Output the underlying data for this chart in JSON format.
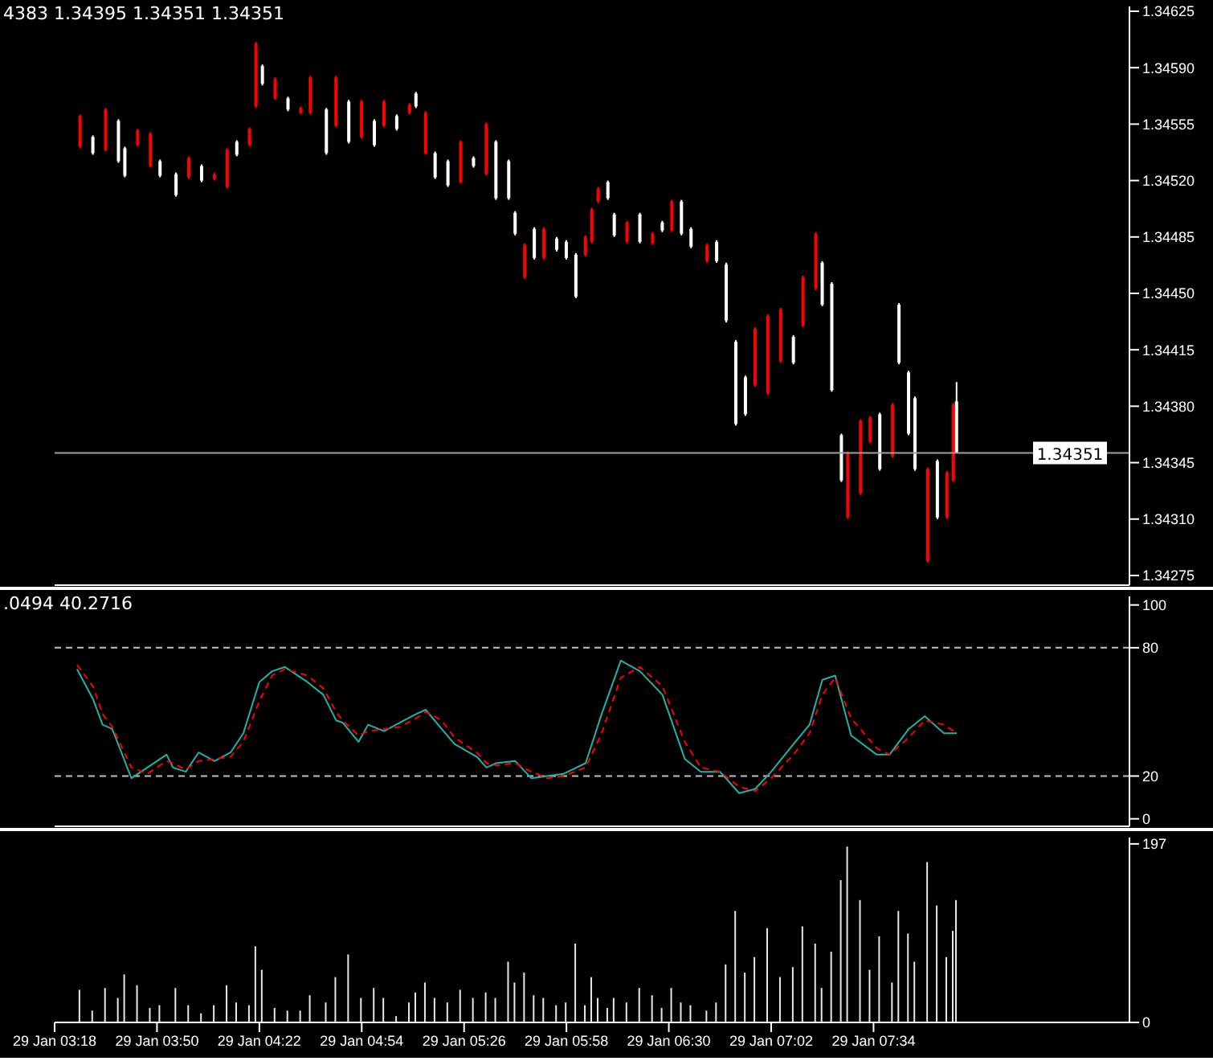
{
  "chart_data": [
    {
      "type": "candlestick",
      "annotations": [
        "4383 1.34395 1.34351 1.34351"
      ],
      "x": [
        "--01-29T03:26",
        "--01-29T03:30",
        "--01-29T03:34",
        "--01-29T03:38",
        "--01-29T03:40",
        "--01-29T03:44",
        "--01-29T03:48",
        "--01-29T03:51",
        "--01-29T03:56",
        "--01-29T04:00",
        "--01-29T04:04",
        "--01-29T04:08",
        "--01-29T04:12",
        "--01-29T04:15",
        "--01-29T04:19",
        "--01-29T04:21",
        "--01-29T04:23",
        "--01-29T04:27",
        "--01-29T04:31",
        "--01-29T04:35",
        "--01-29T04:38",
        "--01-29T04:43",
        "--01-29T04:46",
        "--01-29T04:50",
        "--01-29T04:54",
        "--01-29T04:58",
        "--01-29T05:01",
        "--01-29T05:05",
        "--01-29T05:09",
        "--01-29T05:11",
        "--01-29T05:14",
        "--01-29T05:17",
        "--01-29T05:21",
        "--01-29T05:25",
        "--01-29T05:29",
        "--01-29T05:33",
        "--01-29T05:36",
        "--01-29T05:40",
        "--01-29T05:42",
        "--01-29T05:45",
        "--01-29T05:48",
        "--01-29T05:51",
        "--01-29T05:55",
        "--01-29T05:58",
        "--01-29T06:01",
        "--01-29T06:04",
        "--01-29T06:06",
        "--01-29T06:08",
        "--01-29T06:11",
        "--01-29T06:13",
        "--01-29T06:17",
        "--01-29T06:21",
        "--01-29T06:25",
        "--01-29T06:28",
        "--01-29T06:31",
        "--01-29T06:34",
        "--01-29T06:37",
        "--01-29T06:42",
        "--01-29T06:45",
        "--01-29T06:48",
        "--01-29T06:51",
        "--01-29T06:54",
        "--01-29T06:57",
        "--01-29T07:01",
        "--01-29T07:05",
        "--01-29T07:09",
        "--01-29T07:12",
        "--01-29T07:16",
        "--01-29T07:18",
        "--01-29T07:21",
        "--01-29T07:24",
        "--01-29T07:26",
        "--01-29T07:30",
        "--01-29T07:33",
        "--01-29T07:36",
        "--01-29T07:40",
        "--01-29T07:42",
        "--01-29T07:45",
        "--01-29T07:47",
        "--01-29T07:51",
        "--01-29T07:54",
        "--01-29T07:57",
        "--01-29T07:59",
        "--01-29T08:00"
      ],
      "ohlc": [
        [
          1.34541,
          1.34561,
          1.3454,
          1.3456
        ],
        [
          1.34547,
          1.34548,
          1.34536,
          1.34537
        ],
        [
          1.34539,
          1.34565,
          1.34538,
          1.34564
        ],
        [
          1.34557,
          1.34558,
          1.34531,
          1.34532
        ],
        [
          1.3454,
          1.34541,
          1.34522,
          1.34523
        ],
        [
          1.34542,
          1.34552,
          1.34541,
          1.34551
        ],
        [
          1.34529,
          1.3455,
          1.34528,
          1.34549
        ],
        [
          1.34532,
          1.34533,
          1.34522,
          1.34523
        ],
        [
          1.34524,
          1.34525,
          1.3451,
          1.34511
        ],
        [
          1.34522,
          1.34535,
          1.34521,
          1.34534
        ],
        [
          1.34529,
          1.3453,
          1.34519,
          1.3452
        ],
        [
          1.34521,
          1.34525,
          1.3452,
          1.34524
        ],
        [
          1.34516,
          1.3454,
          1.34515,
          1.34539
        ],
        [
          1.34544,
          1.34545,
          1.34535,
          1.34536
        ],
        [
          1.34542,
          1.34553,
          1.34541,
          1.34552
        ],
        [
          1.34566,
          1.34606,
          1.34565,
          1.34605
        ],
        [
          1.34591,
          1.34592,
          1.34579,
          1.3458
        ],
        [
          1.34571,
          1.34584,
          1.3457,
          1.34583
        ],
        [
          1.34571,
          1.34572,
          1.34563,
          1.34564
        ],
        [
          1.34562,
          1.34566,
          1.34561,
          1.34565
        ],
        [
          1.34562,
          1.34585,
          1.34561,
          1.34584
        ],
        [
          1.34564,
          1.34565,
          1.34536,
          1.34537
        ],
        [
          1.34554,
          1.34585,
          1.34553,
          1.34584
        ],
        [
          1.34569,
          1.3457,
          1.34543,
          1.34544
        ],
        [
          1.34547,
          1.3457,
          1.34546,
          1.34569
        ],
        [
          1.34557,
          1.34558,
          1.34541,
          1.34542
        ],
        [
          1.34554,
          1.3457,
          1.34553,
          1.34569
        ],
        [
          1.3456,
          1.34561,
          1.34551,
          1.34552
        ],
        [
          1.34562,
          1.34568,
          1.34561,
          1.34567
        ],
        [
          1.34574,
          1.34575,
          1.34565,
          1.34566
        ],
        [
          1.34537,
          1.34563,
          1.34536,
          1.34562
        ],
        [
          1.34537,
          1.34538,
          1.34521,
          1.34522
        ],
        [
          1.34532,
          1.34533,
          1.34516,
          1.34517
        ],
        [
          1.34519,
          1.34545,
          1.34518,
          1.34544
        ],
        [
          1.34534,
          1.34535,
          1.34528,
          1.34529
        ],
        [
          1.34524,
          1.34556,
          1.34523,
          1.34555
        ],
        [
          1.34544,
          1.34545,
          1.34508,
          1.34509
        ],
        [
          1.34532,
          1.34533,
          1.34508,
          1.34509
        ],
        [
          1.345,
          1.34501,
          1.34486,
          1.34487
        ],
        [
          1.3446,
          1.34481,
          1.34459,
          1.3448
        ],
        [
          1.3449,
          1.34491,
          1.34471,
          1.34472
        ],
        [
          1.34472,
          1.34491,
          1.34471,
          1.3449
        ],
        [
          1.34484,
          1.34485,
          1.34476,
          1.34477
        ],
        [
          1.34482,
          1.34483,
          1.34471,
          1.34472
        ],
        [
          1.34474,
          1.34475,
          1.34447,
          1.34448
        ],
        [
          1.34474,
          1.34486,
          1.34473,
          1.34485
        ],
        [
          1.34482,
          1.34503,
          1.34481,
          1.34502
        ],
        [
          1.34507,
          1.34516,
          1.34506,
          1.34515
        ],
        [
          1.34519,
          1.3452,
          1.34508,
          1.34509
        ],
        [
          1.34499,
          1.345,
          1.34485,
          1.34486
        ],
        [
          1.34482,
          1.34495,
          1.34481,
          1.34494
        ],
        [
          1.34499,
          1.345,
          1.34481,
          1.34482
        ],
        [
          1.34481,
          1.34488,
          1.3448,
          1.34487
        ],
        [
          1.34494,
          1.34495,
          1.34488,
          1.34489
        ],
        [
          1.34489,
          1.34508,
          1.34488,
          1.34507
        ],
        [
          1.34507,
          1.34508,
          1.34486,
          1.34487
        ],
        [
          1.3449,
          1.34491,
          1.34478,
          1.34479
        ],
        [
          1.3447,
          1.34481,
          1.34469,
          1.3448
        ],
        [
          1.34482,
          1.34483,
          1.34469,
          1.3447
        ],
        [
          1.34468,
          1.34469,
          1.34432,
          1.34433
        ],
        [
          1.3442,
          1.34421,
          1.34368,
          1.34369
        ],
        [
          1.34398,
          1.34399,
          1.34374,
          1.34375
        ],
        [
          1.34393,
          1.34429,
          1.34392,
          1.34428
        ],
        [
          1.34388,
          1.34437,
          1.34387,
          1.34436
        ],
        [
          1.34408,
          1.34441,
          1.34407,
          1.3444
        ],
        [
          1.34423,
          1.34424,
          1.34406,
          1.34407
        ],
        [
          1.3443,
          1.34461,
          1.34429,
          1.3446
        ],
        [
          1.34453,
          1.34488,
          1.34452,
          1.34487
        ],
        [
          1.34469,
          1.3447,
          1.34442,
          1.34443
        ],
        [
          1.34456,
          1.34457,
          1.34389,
          1.3439
        ],
        [
          1.34362,
          1.34363,
          1.34333,
          1.34334
        ],
        [
          1.34311,
          1.34352,
          1.3431,
          1.34351
        ],
        [
          1.34326,
          1.34372,
          1.34325,
          1.34371
        ],
        [
          1.34358,
          1.34374,
          1.34357,
          1.34373
        ],
        [
          1.34375,
          1.34376,
          1.3434,
          1.34341
        ],
        [
          1.34349,
          1.34382,
          1.34348,
          1.34381
        ],
        [
          1.34443,
          1.34444,
          1.34406,
          1.34407
        ],
        [
          1.34401,
          1.34402,
          1.34362,
          1.34363
        ],
        [
          1.34385,
          1.34386,
          1.3434,
          1.34341
        ],
        [
          1.34284,
          1.34342,
          1.34283,
          1.34341
        ],
        [
          1.34346,
          1.34347,
          1.3431,
          1.34311
        ],
        [
          1.34311,
          1.3434,
          1.3431,
          1.34339
        ],
        [
          1.34334,
          1.34382,
          1.34333,
          1.34381
        ],
        [
          1.34383,
          1.34395,
          1.34351,
          1.34351
        ]
      ],
      "colors": [
        "#ff0000",
        "#ffffff",
        "#ff0000",
        "#ffffff",
        "#ffffff",
        "#ff0000",
        "#ff0000",
        "#ffffff",
        "#ffffff",
        "#ff0000",
        "#ffffff",
        "#ff0000",
        "#ff0000",
        "#ffffff",
        "#ff0000",
        "#ff0000",
        "#ffffff",
        "#ff0000",
        "#ffffff",
        "#ff0000",
        "#ff0000",
        "#ffffff",
        "#ff0000",
        "#ffffff",
        "#ff0000",
        "#ffffff",
        "#ff0000",
        "#ffffff",
        "#ff0000",
        "#ffffff",
        "#ff0000",
        "#ffffff",
        "#ffffff",
        "#ff0000",
        "#ffffff",
        "#ff0000",
        "#ffffff",
        "#ffffff",
        "#ffffff",
        "#ff0000",
        "#ffffff",
        "#ff0000",
        "#ffffff",
        "#ffffff",
        "#ffffff",
        "#ff0000",
        "#ff0000",
        "#ff0000",
        "#ffffff",
        "#ffffff",
        "#ff0000",
        "#ffffff",
        "#ff0000",
        "#ffffff",
        "#ff0000",
        "#ffffff",
        "#ffffff",
        "#ff0000",
        "#ffffff",
        "#ffffff",
        "#ffffff",
        "#ffffff",
        "#ff0000",
        "#ff0000",
        "#ff0000",
        "#ffffff",
        "#ff0000",
        "#ff0000",
        "#ffffff",
        "#ffffff",
        "#ffffff",
        "#ff0000",
        "#ff0000",
        "#ff0000",
        "#ffffff",
        "#ff0000",
        "#ffffff",
        "#ffffff",
        "#ffffff",
        "#ff0000",
        "#ffffff",
        "#ff0000",
        "#ff0000",
        "#ffffff"
      ],
      "xlim": [
        "--01-29T03:18",
        "--01-29T08:54"
      ],
      "ylim": [
        1.34269,
        1.34628
      ],
      "yticks": [
        1.34275,
        {
          "value": 1.3431,
          "label": "1.34310"
        },
        1.34345,
        {
          "value": 1.3438,
          "label": "1.34380"
        },
        1.34415,
        {
          "value": 1.3445,
          "label": "1.34450"
        },
        1.34485,
        {
          "value": 1.3452,
          "label": "1.34520"
        },
        1.34555,
        {
          "value": 1.3459,
          "label": "1.34590"
        },
        1.34625
      ],
      "ref_lines": [
        {
          "axis": "y",
          "value": 1.34351,
          "label": "1.34351",
          "color": "#a0a0a0"
        }
      ],
      "tick_labels": "y",
      "grid": false,
      "legend": false
    },
    {
      "type": "line",
      "annotations": [
        ".0494 40.2716"
      ],
      "x": [
        "--01-29T03:25",
        "--01-29T03:30",
        "--01-29T03:33",
        "--01-29T03:36",
        "--01-29T03:42",
        "--01-29T03:47",
        "--01-29T03:53",
        "--01-29T03:55",
        "--01-29T03:59",
        "--01-29T04:03",
        "--01-29T04:08",
        "--01-29T04:13",
        "--01-29T04:17",
        "--01-29T04:22",
        "--01-29T04:26",
        "--01-29T04:30",
        "--01-29T04:37",
        "--01-29T04:42",
        "--01-29T04:46",
        "--01-29T04:48",
        "--01-29T04:53",
        "--01-29T04:56",
        "--01-29T05:01",
        "--01-29T05:06",
        "--01-29T05:11",
        "--01-29T05:14",
        "--01-29T05:19",
        "--01-29T05:23",
        "--01-29T05:30",
        "--01-29T05:33",
        "--01-29T05:36",
        "--01-29T05:42",
        "--01-29T05:47",
        "--01-29T05:52",
        "--01-29T05:57",
        "--01-29T06:04",
        "--01-29T06:09",
        "--01-29T06:15",
        "--01-29T06:21",
        "--01-29T06:28",
        "--01-29T06:35",
        "--01-29T06:40",
        "--01-29T06:46",
        "--01-29T06:52",
        "--01-29T06:57",
        "--01-29T07:02",
        "--01-29T07:09",
        "--01-29T07:14",
        "--01-29T07:18",
        "--01-29T07:22",
        "--01-29T07:27",
        "--01-29T07:35",
        "--01-29T07:39",
        "--01-29T07:45",
        "--01-29T07:50",
        "--01-29T07:56",
        "--01-29T08:00"
      ],
      "series": [
        {
          "color": "#20b2aa",
          "line_style": "solid",
          "values": [
            70,
            56,
            44,
            42,
            19,
            24,
            30,
            24,
            22,
            31,
            27,
            31,
            40,
            64,
            69,
            71,
            64,
            58,
            46,
            45,
            36,
            44,
            41,
            45,
            49,
            51,
            42,
            35,
            29,
            24,
            26,
            27,
            19,
            20,
            21,
            26,
            49,
            74,
            69,
            58,
            28,
            22,
            22,
            12,
            14,
            22,
            35,
            44,
            65,
            67,
            39,
            30,
            30,
            42,
            48,
            40,
            40
          ]
        },
        {
          "color": "#ff0000",
          "line_style": "dashed",
          "values": [
            72,
            62,
            49,
            43,
            24,
            21,
            27,
            26,
            23,
            27,
            28,
            29,
            36,
            55,
            67,
            70,
            67,
            61,
            50,
            46,
            39,
            41,
            42,
            43,
            47,
            50,
            46,
            38,
            31,
            26,
            25,
            26,
            22,
            19,
            20,
            24,
            40,
            66,
            71,
            62,
            36,
            24,
            22,
            15,
            13,
            19,
            30,
            40,
            58,
            66,
            47,
            33,
            30,
            38,
            46,
            44,
            40
          ]
        }
      ],
      "xlim": [
        "--01-29T03:18",
        "--01-29T08:54"
      ],
      "ylim": [
        -3.5,
        104
      ],
      "yticks": [
        0,
        20,
        80,
        100
      ],
      "ref_lines": [
        {
          "axis": "y",
          "value": 20,
          "color": "#c0c0c0",
          "line_style": "dashed"
        },
        {
          "axis": "y",
          "value": 80,
          "color": "#c0c0c0",
          "line_style": "dashed"
        }
      ],
      "marker": "none",
      "tick_labels": "y",
      "grid": false,
      "legend": false
    },
    {
      "type": "bar",
      "x": [
        "--01-29T03:26",
        "--01-29T03:30",
        "--01-29T03:34",
        "--01-29T03:38",
        "--01-29T03:40",
        "--01-29T03:44",
        "--01-29T03:48",
        "--01-29T03:51",
        "--01-29T03:56",
        "--01-29T04:00",
        "--01-29T04:04",
        "--01-29T04:08",
        "--01-29T04:12",
        "--01-29T04:15",
        "--01-29T04:19",
        "--01-29T04:21",
        "--01-29T04:23",
        "--01-29T04:27",
        "--01-29T04:31",
        "--01-29T04:35",
        "--01-29T04:38",
        "--01-29T04:43",
        "--01-29T04:46",
        "--01-29T04:50",
        "--01-29T04:54",
        "--01-29T04:58",
        "--01-29T05:01",
        "--01-29T05:05",
        "--01-29T05:09",
        "--01-29T05:11",
        "--01-29T05:14",
        "--01-29T05:17",
        "--01-29T05:21",
        "--01-29T05:25",
        "--01-29T05:29",
        "--01-29T05:33",
        "--01-29T05:36",
        "--01-29T05:40",
        "--01-29T05:42",
        "--01-29T05:45",
        "--01-29T05:48",
        "--01-29T05:51",
        "--01-29T05:55",
        "--01-29T05:58",
        "--01-29T06:01",
        "--01-29T06:04",
        "--01-29T06:06",
        "--01-29T06:08",
        "--01-29T06:11",
        "--01-29T06:13",
        "--01-29T06:17",
        "--01-29T06:21",
        "--01-29T06:25",
        "--01-29T06:28",
        "--01-29T06:31",
        "--01-29T06:34",
        "--01-29T06:37",
        "--01-29T06:42",
        "--01-29T06:45",
        "--01-29T06:48",
        "--01-29T06:51",
        "--01-29T06:54",
        "--01-29T06:57",
        "--01-29T07:01",
        "--01-29T07:05",
        "--01-29T07:09",
        "--01-29T07:12",
        "--01-29T07:16",
        "--01-29T07:18",
        "--01-29T07:21",
        "--01-29T07:24",
        "--01-29T07:26",
        "--01-29T07:30",
        "--01-29T07:33",
        "--01-29T07:36",
        "--01-29T07:40",
        "--01-29T07:42",
        "--01-29T07:45",
        "--01-29T07:47",
        "--01-29T07:51",
        "--01-29T07:54",
        "--01-29T07:57",
        "--01-29T07:59",
        "--01-29T08:00"
      ],
      "values": [
        36,
        13,
        38,
        27,
        53,
        41,
        16,
        19,
        38,
        19,
        10,
        19,
        41,
        22,
        19,
        84,
        58,
        16,
        13,
        13,
        30,
        22,
        50,
        75,
        27,
        38,
        27,
        7,
        22,
        33,
        44,
        27,
        22,
        36,
        27,
        33,
        27,
        67,
        44,
        55,
        30,
        27,
        19,
        22,
        87,
        19,
        50,
        27,
        16,
        27,
        22,
        38,
        30,
        16,
        38,
        22,
        19,
        13,
        22,
        64,
        123,
        55,
        72,
        104,
        50,
        61,
        106,
        87,
        38,
        78,
        157,
        194,
        135,
        58,
        95,
        44,
        123,
        98,
        67,
        177,
        129,
        72,
        101,
        135
      ],
      "color": "#e8e8e8",
      "xlim": [
        "--01-29T03:18",
        "--01-29T08:54"
      ],
      "xticks": [
        {
          "value": "--01-29T03:18",
          "label": "29 Jan 03:18"
        },
        {
          "value": "--01-29T03:50",
          "label": "29 Jan 03:50"
        },
        {
          "value": "--01-29T04:22",
          "label": "29 Jan 04:22"
        },
        {
          "value": "--01-29T04:54",
          "label": "29 Jan 04:54"
        },
        {
          "value": "--01-29T05:26",
          "label": "29 Jan 05:26"
        },
        {
          "value": "--01-29T05:58",
          "label": "29 Jan 05:58"
        },
        {
          "value": "--01-29T06:30",
          "label": "29 Jan 06:30"
        },
        {
          "value": "--01-29T07:02",
          "label": "29 Jan 07:02"
        },
        {
          "value": "--01-29T07:34",
          "label": "29 Jan 07:34"
        }
      ],
      "ylim": [
        0,
        204
      ],
      "yticks": [
        0,
        197
      ],
      "grid": false,
      "legend": false
    }
  ]
}
